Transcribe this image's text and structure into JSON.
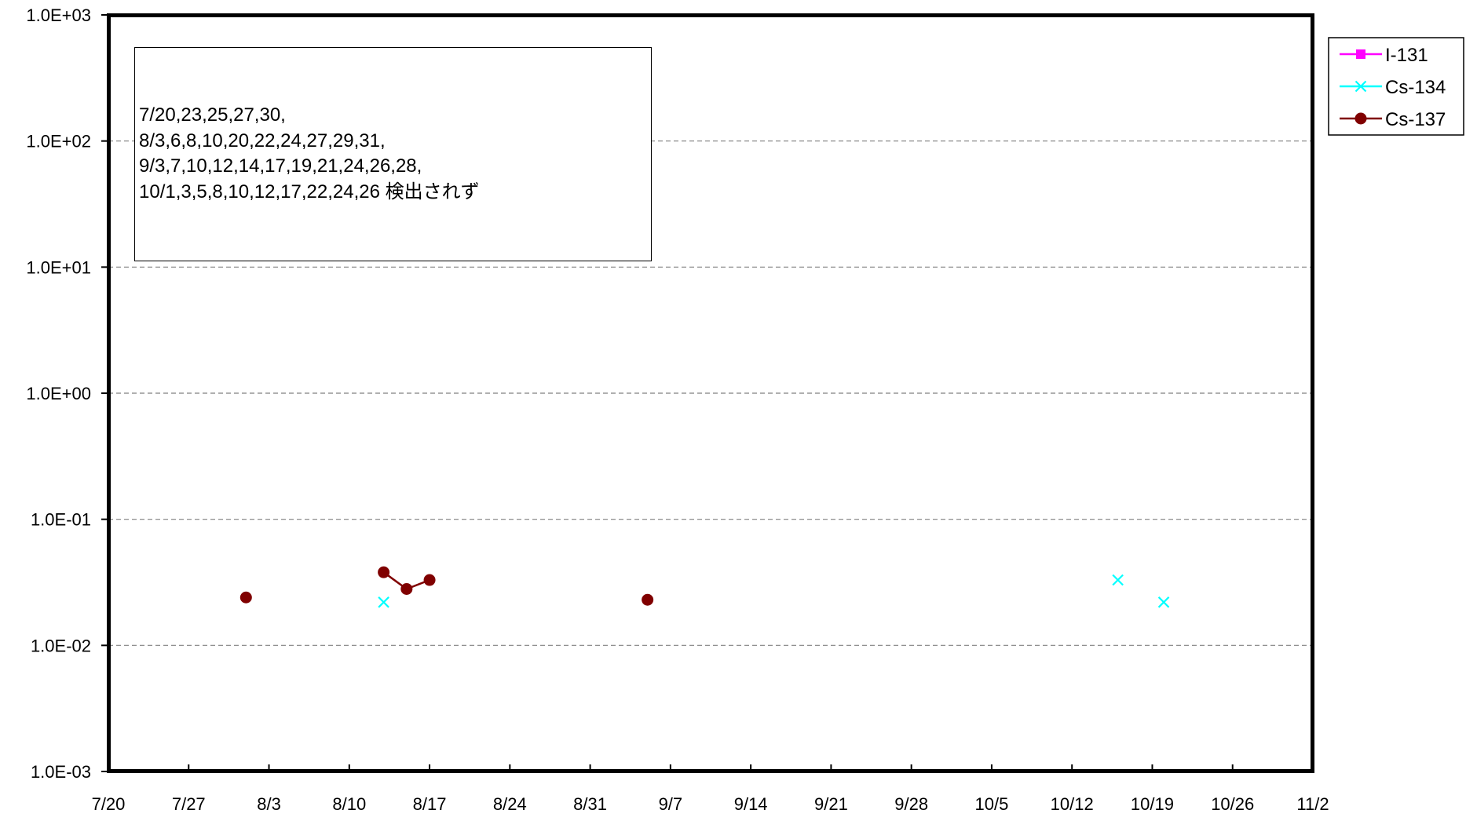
{
  "chart_data": {
    "type": "scatter",
    "y_scale": "log",
    "ylim": [
      0.001,
      1000
    ],
    "y_ticks": [
      0.001,
      0.01,
      0.1,
      1,
      10,
      100,
      1000
    ],
    "y_tick_labels": [
      "1.0E-03",
      "1.0E-02",
      "1.0E-01",
      "1.0E+00",
      "1.0E+01",
      "1.0E+02",
      "1.0E+03"
    ],
    "xlim": [
      "7/20",
      "11/2"
    ],
    "x_ticks": [
      "7/20",
      "7/27",
      "8/3",
      "8/10",
      "8/17",
      "8/24",
      "8/31",
      "9/7",
      "9/14",
      "9/21",
      "9/28",
      "10/5",
      "10/12",
      "10/19",
      "10/26",
      "11/2"
    ],
    "grid": "horizontal dashed at y ticks",
    "legend_position": "right",
    "series": [
      {
        "name": "I-131",
        "color": "#ff00ff",
        "marker": "square",
        "line": true,
        "points": []
      },
      {
        "name": "Cs-134",
        "color": "#00ffff",
        "marker": "x",
        "line": true,
        "points": [
          {
            "x": "8/13",
            "y": 0.022
          },
          {
            "x": "10/16",
            "y": 0.033
          },
          {
            "x": "10/20",
            "y": 0.022
          }
        ]
      },
      {
        "name": "Cs-137",
        "color": "#800000",
        "marker": "circle",
        "line": true,
        "points": [
          {
            "x": "8/1",
            "y": 0.024
          },
          {
            "x": "8/13",
            "y": 0.038
          },
          {
            "x": "8/15",
            "y": 0.028
          },
          {
            "x": "8/17",
            "y": 0.033
          },
          {
            "x": "9/5",
            "y": 0.023
          }
        ],
        "connected_groups": [
          [
            1,
            2,
            3
          ]
        ]
      }
    ],
    "annotation": [
      "7/20,23,25,27,30,",
      "8/3,6,8,10,20,22,24,27,29,31,",
      "9/3,7,10,12,14,17,19,21,24,26,28,",
      "10/1,3,5,8,10,12,17,22,24,26 検出されず"
    ]
  }
}
